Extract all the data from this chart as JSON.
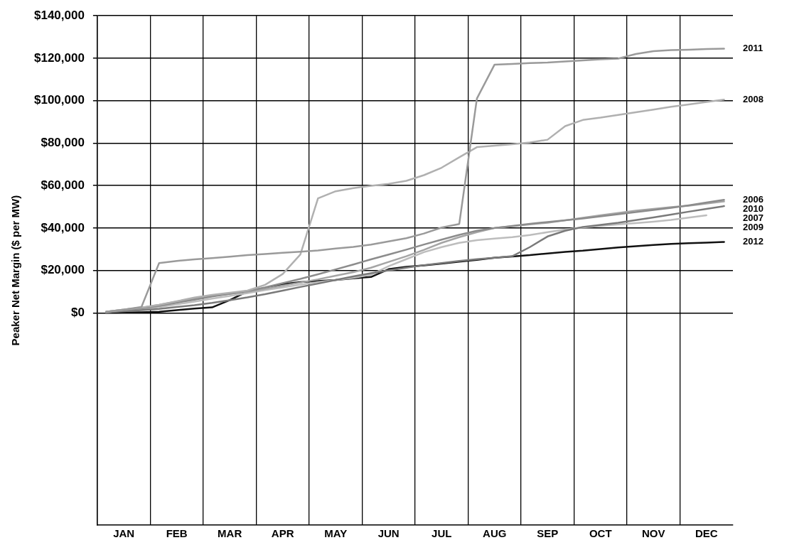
{
  "chart_data": {
    "type": "line",
    "ylabel": "Peaker Net Margin ($ per MW)",
    "categories": [
      null,
      "JAN",
      null,
      null,
      "FEB",
      null,
      null,
      "MAR",
      null,
      null,
      "APR",
      null,
      null,
      "MAY",
      null,
      null,
      "JUN",
      null,
      null,
      "JUL",
      null,
      null,
      "AUG",
      null,
      null,
      "SEP",
      null,
      null,
      "OCT",
      null,
      null,
      "NOV",
      null,
      null,
      "DEC",
      null
    ],
    "ylim": [
      -100000,
      140000
    ],
    "yticks": [
      {
        "value": 0,
        "label": "$0"
      },
      {
        "value": 20000,
        "label": "$20,000"
      },
      {
        "value": 40000,
        "label": "$40,000"
      },
      {
        "value": 60000,
        "label": "$60,000"
      },
      {
        "value": 80000,
        "label": "$80,000"
      },
      {
        "value": 100000,
        "label": "$100,000"
      },
      {
        "value": 120000,
        "label": "$120,000"
      },
      {
        "value": 140000,
        "label": "$140,000"
      }
    ],
    "grid": true,
    "legend": false,
    "marker": "none",
    "line_style": "solid",
    "series": [
      {
        "name": "2011",
        "color": "#9a9a9a",
        "values": [
          500,
          1500,
          2800,
          23500,
          24500,
          25200,
          25800,
          26500,
          27200,
          27700,
          28300,
          28800,
          29400,
          30300,
          31100,
          32200,
          33700,
          35200,
          37400,
          40200,
          41900,
          101000,
          117000,
          117300,
          117700,
          118000,
          118500,
          119000,
          119500,
          119800,
          122000,
          123300,
          123800,
          124000,
          124300,
          124500
        ]
      },
      {
        "name": "2008",
        "color": "#b0b0b0",
        "values": [
          500,
          1500,
          2500,
          3800,
          5500,
          7200,
          8500,
          9500,
          10500,
          13200,
          18300,
          27500,
          54000,
          57300,
          58800,
          59900,
          60800,
          62200,
          64900,
          68400,
          73300,
          78100,
          78800,
          79500,
          80300,
          81600,
          88000,
          90900,
          92000,
          93300,
          94500,
          95800,
          97100,
          98200,
          99400,
          100500
        ]
      },
      {
        "name": "2006",
        "color": "#8c8c8c",
        "values": [
          400,
          1300,
          2100,
          3300,
          4800,
          6200,
          7700,
          9000,
          10300,
          12000,
          14000,
          16000,
          18200,
          20500,
          22800,
          25200,
          27500,
          29800,
          32200,
          34500,
          36800,
          38700,
          40000,
          41000,
          42000,
          42800,
          43600,
          44500,
          45500,
          46500,
          47500,
          48500,
          49500,
          50700,
          52000,
          53300
        ]
      },
      {
        "name": "2010",
        "color": "#a5a5a5",
        "values": [
          500,
          1500,
          2500,
          3800,
          5300,
          6800,
          8000,
          9000,
          10000,
          11300,
          12800,
          14300,
          15800,
          17500,
          19200,
          21300,
          24000,
          26700,
          29700,
          33000,
          35700,
          38000,
          40000,
          40800,
          41700,
          42500,
          43600,
          44800,
          46000,
          47100,
          48200,
          49000,
          49800,
          50500,
          51500,
          52500
        ]
      },
      {
        "name": "2007",
        "color": "#7a7a7a",
        "values": [
          300,
          800,
          1300,
          1900,
          2800,
          3600,
          4700,
          6000,
          7300,
          8800,
          10500,
          12200,
          13800,
          15500,
          17200,
          18700,
          20000,
          21300,
          22500,
          23500,
          24500,
          25300,
          26000,
          26700,
          31000,
          36000,
          38700,
          40500,
          41500,
          42500,
          43700,
          45000,
          46300,
          47700,
          49000,
          50300
        ]
      },
      {
        "name": "2009",
        "color": "#bdbdbd",
        "values": [
          300,
          1000,
          1700,
          2700,
          4000,
          5300,
          6700,
          8000,
          9300,
          10700,
          12000,
          13300,
          14500,
          15500,
          16500,
          18000,
          22000,
          25300,
          28600,
          31000,
          33000,
          34300,
          35000,
          35700,
          36700,
          38000,
          39300,
          40300,
          41000,
          41700,
          42300,
          43000,
          43800,
          44900,
          46000,
          null
        ]
      },
      {
        "name": "2012",
        "color": "#111111",
        "values": [
          100,
          200,
          300,
          500,
          1300,
          2000,
          2600,
          6000,
          10100,
          11500,
          13500,
          14500,
          15000,
          15500,
          16300,
          16900,
          20600,
          21700,
          22400,
          23200,
          24100,
          25000,
          26000,
          26600,
          27200,
          28000,
          28700,
          29300,
          30100,
          30800,
          31400,
          32000,
          32500,
          32800,
          33100,
          33400
        ]
      }
    ]
  }
}
